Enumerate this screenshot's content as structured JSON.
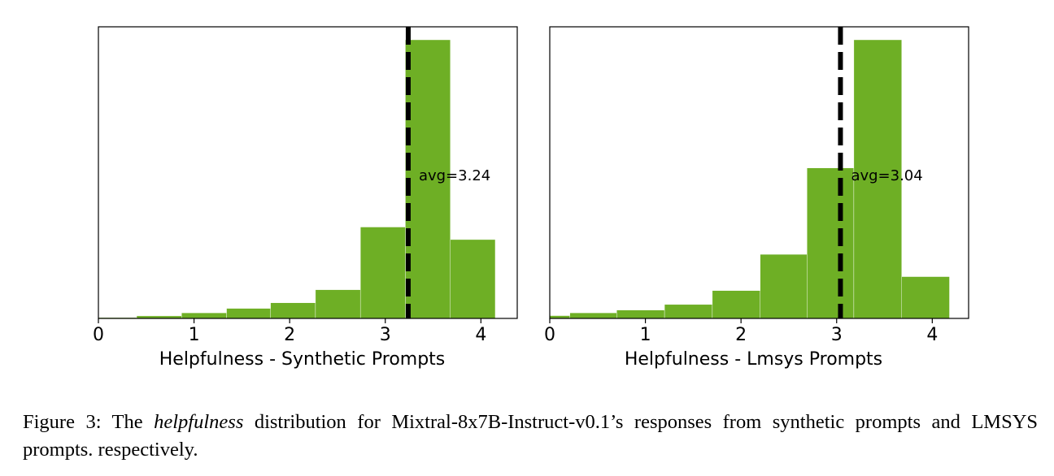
{
  "chart_data": [
    {
      "type": "bar",
      "xlabel": "Helpfulness - Synthetic Prompts",
      "xlim": [
        0,
        4.38
      ],
      "xticks": [
        0,
        1,
        2,
        3,
        4
      ],
      "ylim": [
        0,
        100
      ],
      "yticks_shown": false,
      "bin_edges": [
        0.0,
        0.4,
        0.87,
        1.34,
        1.8,
        2.27,
        2.74,
        3.21,
        3.68,
        4.15
      ],
      "values": [
        0.3,
        0.9,
        2.0,
        3.6,
        5.6,
        10.3,
        32.8,
        100.0,
        28.3
      ],
      "bar_color": "#6eaf25",
      "mean_line": {
        "x": 3.24,
        "label": "avg=3.24"
      }
    },
    {
      "type": "bar",
      "xlabel": "Helpfulness - Lmsys Prompts",
      "xlim": [
        0,
        4.38
      ],
      "xticks": [
        0,
        1,
        2,
        3,
        4
      ],
      "ylim": [
        0,
        100
      ],
      "yticks_shown": false,
      "bin_edges": [
        0.0,
        0.21,
        0.7,
        1.2,
        1.7,
        2.2,
        2.69,
        3.18,
        3.68,
        4.18
      ],
      "values": [
        1.0,
        2.0,
        3.0,
        5.0,
        10.0,
        23.0,
        54.0,
        100.0,
        15.0
      ],
      "bar_color": "#6eaf25",
      "mean_line": {
        "x": 3.04,
        "label": "avg=3.04"
      }
    }
  ],
  "caption": {
    "prefix": "Figure 3: The ",
    "emphasis": "helpfulness",
    "suffix": " distribution for Mixtral-8x7B-Instruct-v0.1’s responses from synthetic prompts and LMSYS prompts. respectively."
  }
}
